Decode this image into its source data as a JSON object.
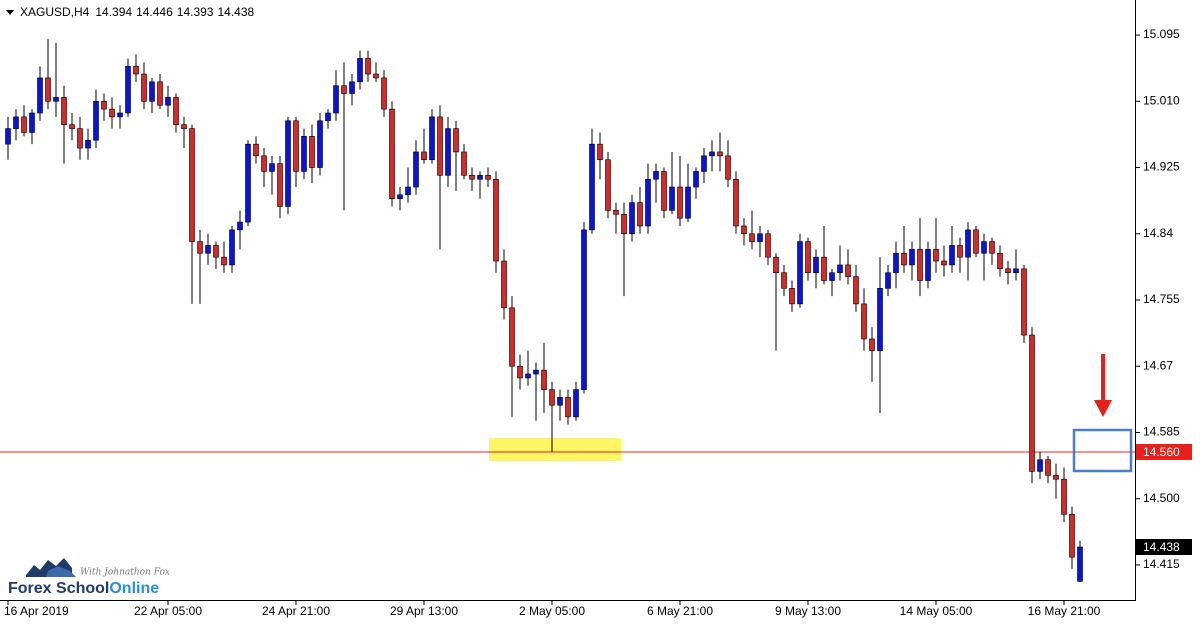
{
  "chart_data": {
    "type": "candlestick",
    "symbol": "XAGUSD,H4",
    "ohlc": [
      14.394,
      14.446,
      14.393,
      14.438
    ],
    "up_color": "#0a14dc",
    "down_color": "#d42a2a",
    "ylim": [
      14.37,
      15.14
    ],
    "yticks": [
      15.095,
      {
        "value": 15.01,
        "label": "15.010"
      },
      14.925,
      14.84,
      14.755,
      14.67,
      14.585,
      {
        "value": 14.5,
        "label": "14.500"
      },
      14.415
    ],
    "level": {
      "value": 14.56,
      "label": "14.560",
      "color": "#e8201a"
    },
    "last_price": 14.438,
    "logo": {
      "tagline": "With Johnathon Fox",
      "name": "Forex School",
      "name_accent": "Online"
    },
    "categories": [
      "16 Apr 2019",
      null,
      null,
      null,
      null,
      null,
      null,
      null,
      null,
      null,
      null,
      null,
      null,
      null,
      null,
      null,
      null,
      null,
      null,
      null,
      "22 Apr 05:00",
      null,
      null,
      null,
      null,
      null,
      null,
      null,
      null,
      null,
      null,
      null,
      null,
      null,
      null,
      null,
      "24 Apr 21:00",
      null,
      null,
      null,
      null,
      null,
      null,
      null,
      null,
      null,
      null,
      null,
      null,
      null,
      null,
      null,
      "29 Apr 13:00",
      null,
      null,
      null,
      null,
      null,
      null,
      null,
      null,
      null,
      null,
      null,
      null,
      null,
      null,
      null,
      "2 May 05:00",
      null,
      null,
      null,
      null,
      null,
      null,
      null,
      null,
      null,
      null,
      null,
      null,
      null,
      null,
      null,
      "6 May 21:00",
      null,
      null,
      null,
      null,
      null,
      null,
      null,
      null,
      null,
      null,
      null,
      null,
      null,
      null,
      null,
      "9 May 13:00",
      null,
      null,
      null,
      null,
      null,
      null,
      null,
      null,
      null,
      null,
      null,
      null,
      null,
      null,
      null,
      "14 May 05:00",
      null,
      null,
      null,
      null,
      null,
      null,
      null,
      null,
      null,
      null,
      null,
      null,
      null,
      null,
      null,
      "16 May 21:00",
      null,
      null
    ],
    "candles": [
      [
        14.955,
        14.99,
        14.935,
        14.975
      ],
      [
        14.975,
        15.0,
        14.96,
        14.99
      ],
      [
        14.99,
        15.005,
        14.965,
        14.97
      ],
      [
        14.97,
        15.0,
        14.955,
        14.995
      ],
      [
        14.995,
        15.055,
        14.985,
        15.04
      ],
      [
        15.04,
        15.09,
        15.0,
        15.01
      ],
      [
        15.01,
        15.085,
        14.99,
        15.015
      ],
      [
        15.015,
        15.03,
        14.93,
        14.98
      ],
      [
        14.98,
        14.995,
        14.96,
        14.975
      ],
      [
        14.975,
        14.99,
        14.935,
        14.95
      ],
      [
        14.95,
        14.975,
        14.935,
        14.96
      ],
      [
        14.96,
        15.025,
        14.95,
        15.01
      ],
      [
        15.01,
        15.02,
        14.985,
        15.0
      ],
      [
        15.0,
        15.015,
        14.975,
        14.99
      ],
      [
        14.99,
        15.005,
        14.975,
        14.995
      ],
      [
        14.995,
        15.065,
        14.99,
        15.055
      ],
      [
        15.055,
        15.07,
        15.035,
        15.045
      ],
      [
        15.045,
        15.06,
        15.0,
        15.01
      ],
      [
        15.01,
        15.04,
        14.995,
        15.035
      ],
      [
        15.035,
        15.045,
        15.0,
        15.005
      ],
      [
        15.005,
        15.03,
        14.99,
        15.015
      ],
      [
        15.015,
        15.02,
        14.97,
        14.98
      ],
      [
        14.98,
        14.99,
        14.95,
        14.975
      ],
      [
        14.975,
        14.98,
        14.75,
        14.83
      ],
      [
        14.83,
        14.845,
        14.75,
        14.815
      ],
      [
        14.815,
        14.84,
        14.8,
        14.825
      ],
      [
        14.825,
        14.83,
        14.795,
        14.81
      ],
      [
        14.81,
        14.83,
        14.79,
        14.8
      ],
      [
        14.8,
        14.85,
        14.79,
        14.845
      ],
      [
        14.845,
        14.87,
        14.82,
        14.855
      ],
      [
        14.855,
        14.96,
        14.85,
        14.955
      ],
      [
        14.955,
        14.965,
        14.93,
        14.94
      ],
      [
        14.94,
        14.95,
        14.9,
        14.92
      ],
      [
        14.92,
        14.94,
        14.89,
        14.93
      ],
      [
        14.93,
        14.94,
        14.86,
        14.875
      ],
      [
        14.875,
        14.99,
        14.865,
        14.985
      ],
      [
        14.985,
        14.99,
        14.9,
        14.92
      ],
      [
        14.92,
        14.975,
        14.91,
        14.965
      ],
      [
        14.965,
        14.98,
        14.905,
        14.925
      ],
      [
        14.925,
        14.995,
        14.915,
        14.985
      ],
      [
        14.985,
        15.0,
        14.975,
        14.995
      ],
      [
        14.995,
        15.05,
        14.985,
        15.03
      ],
      [
        15.03,
        15.06,
        14.87,
        15.02
      ],
      [
        15.02,
        15.045,
        15.005,
        15.035
      ],
      [
        15.035,
        15.075,
        15.025,
        15.065
      ],
      [
        15.065,
        15.075,
        15.035,
        15.045
      ],
      [
        15.045,
        15.06,
        15.035,
        15.04
      ],
      [
        15.04,
        15.05,
        14.99,
        15.0
      ],
      [
        15.0,
        15.01,
        14.875,
        14.885
      ],
      [
        14.885,
        14.9,
        14.87,
        14.89
      ],
      [
        14.89,
        14.925,
        14.88,
        14.9
      ],
      [
        14.9,
        14.96,
        14.89,
        14.945
      ],
      [
        14.945,
        14.975,
        14.93,
        14.935
      ],
      [
        14.935,
        15.0,
        14.93,
        14.99
      ],
      [
        14.99,
        15.005,
        14.82,
        14.915
      ],
      [
        14.915,
        14.99,
        14.9,
        14.975
      ],
      [
        14.975,
        14.985,
        14.895,
        14.945
      ],
      [
        14.945,
        14.955,
        14.91,
        14.915
      ],
      [
        14.915,
        14.925,
        14.895,
        14.91
      ],
      [
        14.91,
        14.92,
        14.885,
        14.915
      ],
      [
        14.915,
        14.925,
        14.9,
        14.91
      ],
      [
        14.91,
        14.92,
        14.79,
        14.805
      ],
      [
        14.805,
        14.82,
        14.73,
        14.745
      ],
      [
        14.745,
        14.76,
        14.605,
        14.67
      ],
      [
        14.67,
        14.685,
        14.64,
        14.655
      ],
      [
        14.655,
        14.69,
        14.645,
        14.66
      ],
      [
        14.66,
        14.675,
        14.6,
        14.665
      ],
      [
        14.665,
        14.7,
        14.61,
        14.64
      ],
      [
        14.64,
        14.65,
        14.56,
        14.62
      ],
      [
        14.62,
        14.64,
        14.6,
        14.63
      ],
      [
        14.63,
        14.64,
        14.595,
        14.605
      ],
      [
        14.605,
        14.65,
        14.6,
        14.64
      ],
      [
        14.64,
        14.855,
        14.635,
        14.845
      ],
      [
        14.845,
        14.975,
        14.84,
        14.955
      ],
      [
        14.955,
        14.97,
        14.91,
        14.935
      ],
      [
        14.935,
        14.945,
        14.86,
        14.87
      ],
      [
        14.87,
        14.88,
        14.84,
        14.865
      ],
      [
        14.865,
        14.88,
        14.76,
        14.84
      ],
      [
        14.84,
        14.89,
        14.83,
        14.88
      ],
      [
        14.88,
        14.9,
        14.84,
        14.85
      ],
      [
        14.85,
        14.93,
        14.84,
        14.91
      ],
      [
        14.91,
        14.93,
        14.88,
        14.92
      ],
      [
        14.92,
        14.925,
        14.86,
        14.87
      ],
      [
        14.87,
        14.945,
        14.865,
        14.9
      ],
      [
        14.9,
        14.94,
        14.85,
        14.86
      ],
      [
        14.86,
        14.93,
        14.855,
        14.9
      ],
      [
        14.9,
        14.925,
        14.885,
        14.92
      ],
      [
        14.92,
        14.95,
        14.905,
        14.94
      ],
      [
        14.94,
        14.96,
        14.92,
        14.945
      ],
      [
        14.945,
        14.97,
        14.92,
        14.94
      ],
      [
        14.94,
        14.96,
        14.9,
        14.91
      ],
      [
        14.91,
        14.92,
        14.84,
        14.85
      ],
      [
        14.85,
        14.86,
        14.825,
        14.84
      ],
      [
        14.84,
        14.87,
        14.82,
        14.83
      ],
      [
        14.83,
        14.85,
        14.81,
        14.84
      ],
      [
        14.84,
        14.845,
        14.8,
        14.81
      ],
      [
        14.81,
        14.815,
        14.69,
        14.79
      ],
      [
        14.79,
        14.8,
        14.76,
        14.77
      ],
      [
        14.77,
        14.78,
        14.74,
        14.75
      ],
      [
        14.75,
        14.84,
        14.745,
        14.83
      ],
      [
        14.83,
        14.835,
        14.78,
        14.79
      ],
      [
        14.79,
        14.82,
        14.77,
        14.81
      ],
      [
        14.81,
        14.85,
        14.775,
        14.78
      ],
      [
        14.78,
        14.795,
        14.76,
        14.79
      ],
      [
        14.79,
        14.825,
        14.78,
        14.8
      ],
      [
        14.8,
        14.82,
        14.775,
        14.785
      ],
      [
        14.785,
        14.8,
        14.74,
        14.75
      ],
      [
        14.75,
        14.77,
        14.69,
        14.705
      ],
      [
        14.705,
        14.72,
        14.65,
        14.69
      ],
      [
        14.69,
        14.81,
        14.61,
        14.77
      ],
      [
        14.77,
        14.8,
        14.76,
        14.79
      ],
      [
        14.79,
        14.83,
        14.77,
        14.815
      ],
      [
        14.815,
        14.85,
        14.79,
        14.8
      ],
      [
        14.8,
        14.83,
        14.78,
        14.82
      ],
      [
        14.82,
        14.86,
        14.76,
        14.78
      ],
      [
        14.78,
        14.83,
        14.77,
        14.82
      ],
      [
        14.82,
        14.86,
        14.79,
        14.805
      ],
      [
        14.805,
        14.825,
        14.785,
        14.8
      ],
      [
        14.8,
        14.85,
        14.79,
        14.825
      ],
      [
        14.825,
        14.835,
        14.79,
        14.81
      ],
      [
        14.81,
        14.855,
        14.78,
        14.845
      ],
      [
        14.845,
        14.85,
        14.81,
        14.815
      ],
      [
        14.815,
        14.84,
        14.78,
        14.83
      ],
      [
        14.83,
        14.835,
        14.8,
        14.815
      ],
      [
        14.815,
        14.825,
        14.785,
        14.795
      ],
      [
        14.795,
        14.805,
        14.775,
        14.79
      ],
      [
        14.79,
        14.82,
        14.78,
        14.795
      ],
      [
        14.795,
        14.8,
        14.7,
        14.71
      ],
      [
        14.71,
        14.72,
        14.52,
        14.535
      ],
      [
        14.535,
        14.56,
        14.525,
        14.55
      ],
      [
        14.55,
        14.555,
        14.52,
        14.53
      ],
      [
        14.53,
        14.545,
        14.5,
        14.525
      ],
      [
        14.525,
        14.54,
        14.47,
        14.48
      ],
      [
        14.48,
        14.49,
        14.41,
        14.425
      ],
      [
        14.394,
        14.446,
        14.393,
        14.438
      ]
    ]
  }
}
